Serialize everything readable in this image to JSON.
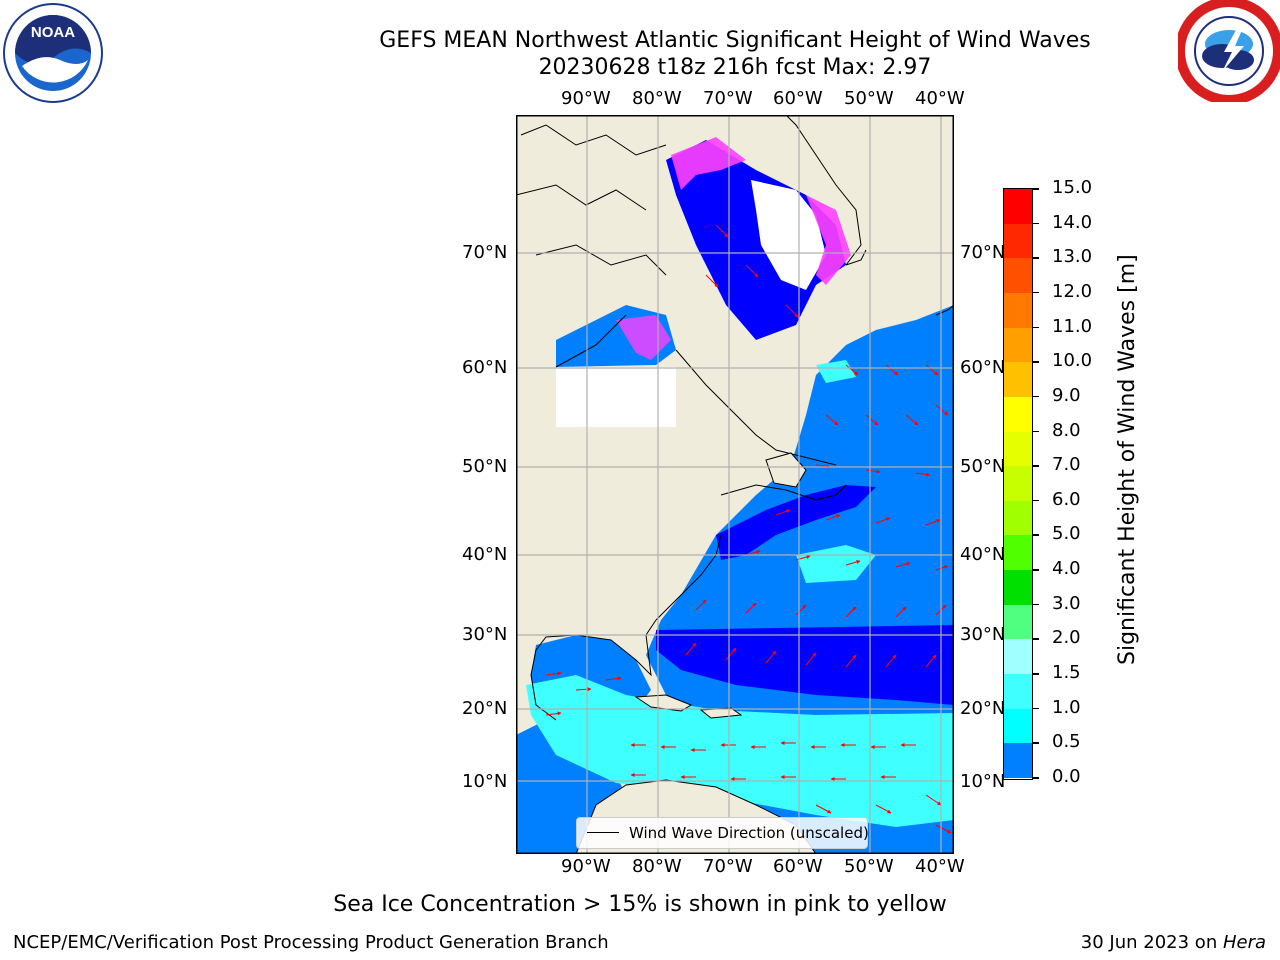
{
  "header": {
    "title_line1": "GEFS MEAN Northwest Atlantic Significant Height of Wind Waves",
    "title_line2": "20230628 t18z 216h fcst   Max: 2.97"
  },
  "logos": {
    "left": {
      "name": "NOAA",
      "text": "NOAA",
      "ring_text": "NATIONAL OCEANIC AND ATMOSPHERIC ADMINISTRATION · U.S. DEPARTMENT OF COMMERCE"
    },
    "right": {
      "name": "National Weather Service",
      "ring_text": "NATIONAL WEATHER SERVICE"
    }
  },
  "map": {
    "lon_labels": [
      "90°W",
      "80°W",
      "70°W",
      "60°W",
      "50°W",
      "40°W"
    ],
    "lat_labels": [
      "70°N",
      "60°N",
      "50°N",
      "40°N",
      "30°N",
      "20°N",
      "10°N"
    ],
    "legend_label": "Wind Wave Direction (unscaled)",
    "colors": {
      "land": "#efecdc",
      "ocean_low": "#0000ff",
      "ocean_mid": "#0080ff",
      "ocean_cyan": "#40ffff",
      "ice": "#ffffff",
      "ice_edge": "#ff40ff",
      "arrows": "#ff0000",
      "grid": "#b0b0b0"
    }
  },
  "colorbar": {
    "label": "Significant Height of Wind Waves [m]",
    "ticks": [
      "15.0",
      "14.0",
      "13.0",
      "12.0",
      "11.0",
      "10.0",
      "9.0",
      "8.0",
      "7.0",
      "6.0",
      "5.0",
      "4.0",
      "3.0",
      "2.0",
      "1.5",
      "1.0",
      "0.5",
      "0.0"
    ],
    "colors": [
      "#ff0000",
      "#ff2800",
      "#ff5000",
      "#ff7800",
      "#ffa000",
      "#ffc000",
      "#ffff00",
      "#e6ff00",
      "#c8ff00",
      "#a0ff00",
      "#50ff00",
      "#00e000",
      "#50ff80",
      "#a0ffff",
      "#40ffff",
      "#00ffff",
      "#0080ff",
      "#0000ff"
    ]
  },
  "note": "Sea Ice Concentration > 15% is shown in pink to yellow",
  "footer": {
    "left": "NCEP/EMC/Verification Post Processing Product Generation Branch",
    "right_prefix": "30 Jun 2023 on ",
    "right_host": "Hera"
  }
}
